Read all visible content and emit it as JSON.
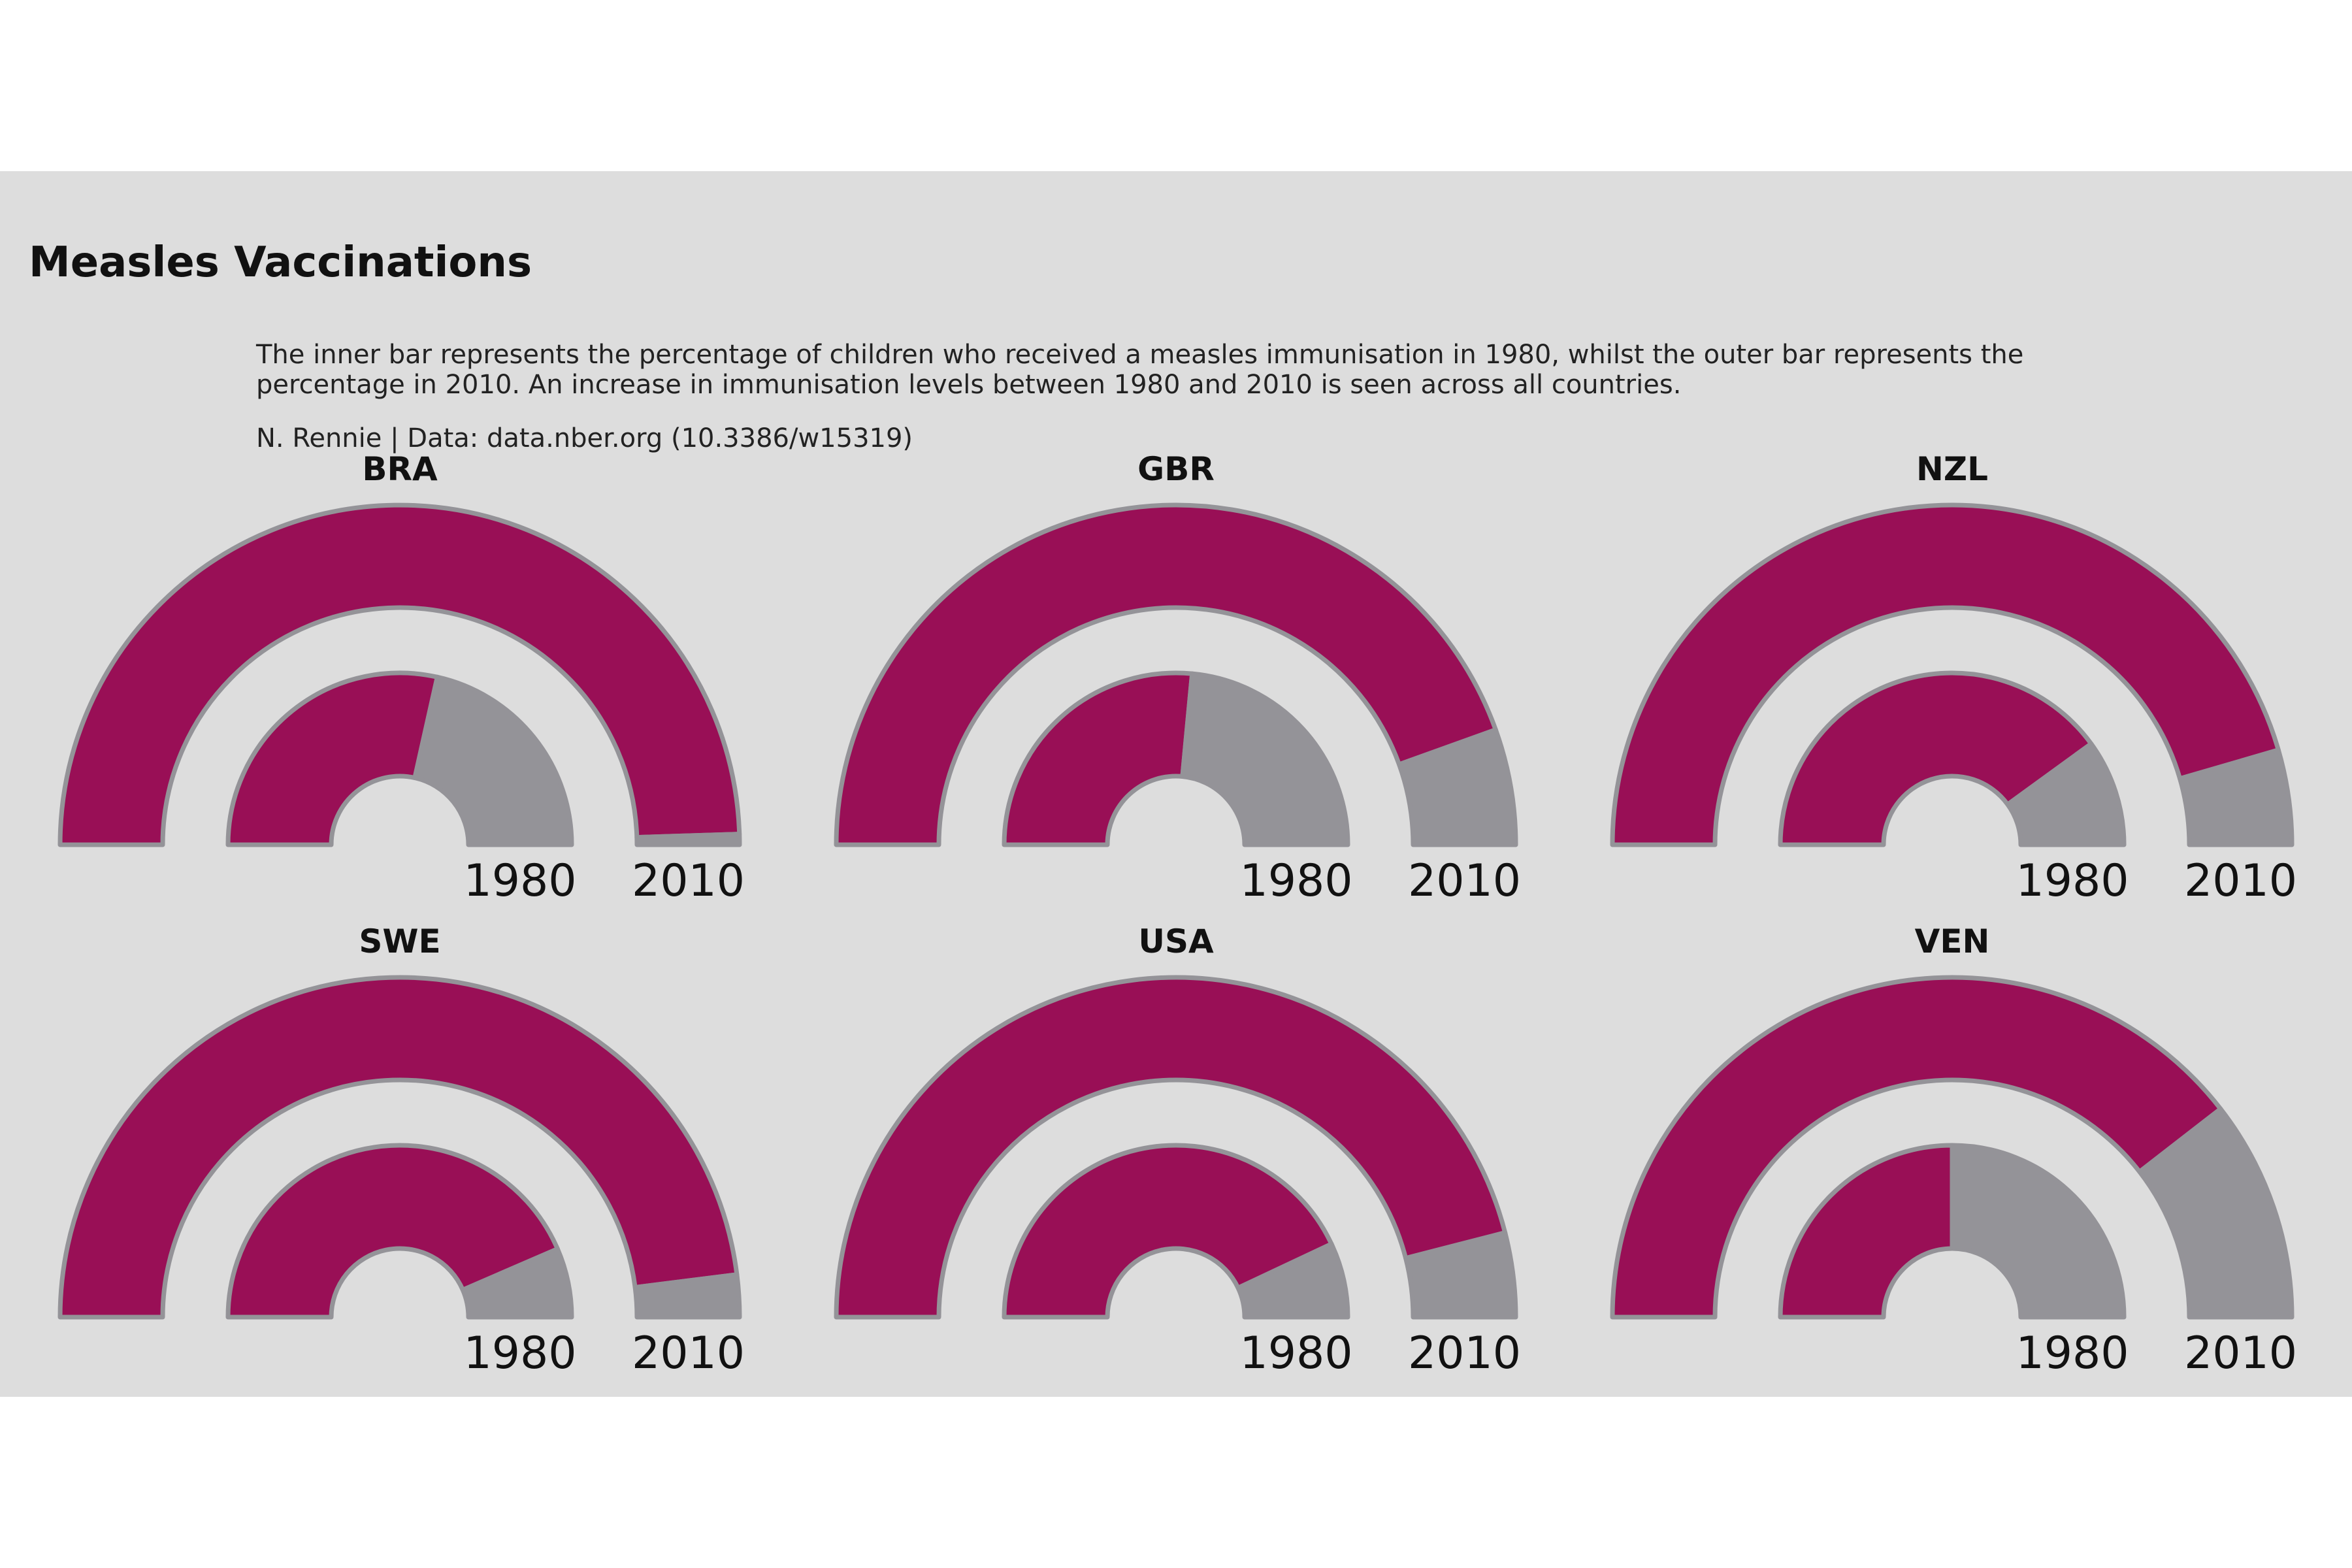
{
  "title": "Measles Vaccinations",
  "subtitle": "The inner bar represents the percentage of children who received a measles immunisation in 1980, whilst the outer bar represents the percentage in 2010. An increase in immunisation levels between 1980 and 2010 is seen across all countries.",
  "caption": "N. Rennie | Data: data.nber.org (10.3386/w15319)",
  "colors": {
    "filled": "#990f56",
    "remaining": "#949398",
    "outline": "#949398",
    "background": "#dddddd"
  },
  "chart_data": {
    "type": "radial-bar",
    "value_range": [
      0,
      100
    ],
    "unit": "percent",
    "ring_labels": {
      "inner": "1980",
      "outer": "2010"
    },
    "panels": [
      {
        "country": "BRA",
        "inner_1980": 57,
        "outer_2010": 99
      },
      {
        "country": "GBR",
        "inner_1980": 53,
        "outer_2010": 89
      },
      {
        "country": "NZL",
        "inner_1980": 80,
        "outer_2010": 91
      },
      {
        "country": "SWE",
        "inner_1980": 87,
        "outer_2010": 96
      },
      {
        "country": "USA",
        "inner_1980": 86,
        "outer_2010": 92
      },
      {
        "country": "VEN",
        "inner_1980": 50,
        "outer_2010": 79
      }
    ]
  }
}
